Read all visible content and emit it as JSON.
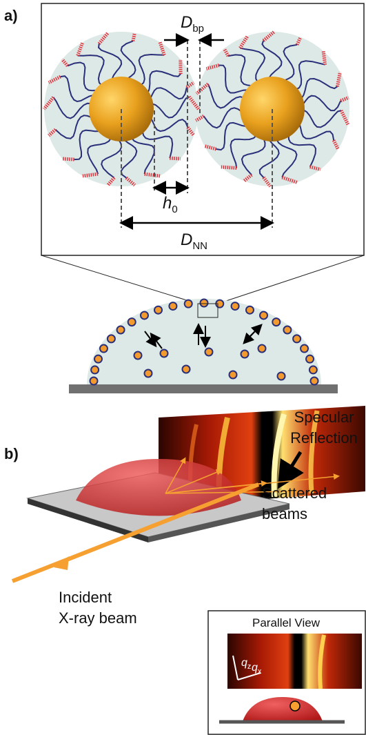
{
  "panel_a": {
    "label": "a)",
    "d_bp": {
      "symbol": "D",
      "subscript": "bp"
    },
    "h0": {
      "symbol": "h",
      "subscript": "0"
    },
    "d_nn": {
      "symbol": "D",
      "subscript": "NN"
    }
  },
  "panel_b": {
    "label": "b)",
    "specular": [
      "Specular",
      "Reflection"
    ],
    "scattered": [
      "Scattered",
      "beams"
    ],
    "incident": [
      "Incident",
      "X-ray beam"
    ],
    "inset": {
      "title": "Parallel View",
      "qz": {
        "symbol": "q",
        "subscript": "z"
      },
      "qx": {
        "symbol": "q",
        "subscript": "x"
      }
    }
  }
}
